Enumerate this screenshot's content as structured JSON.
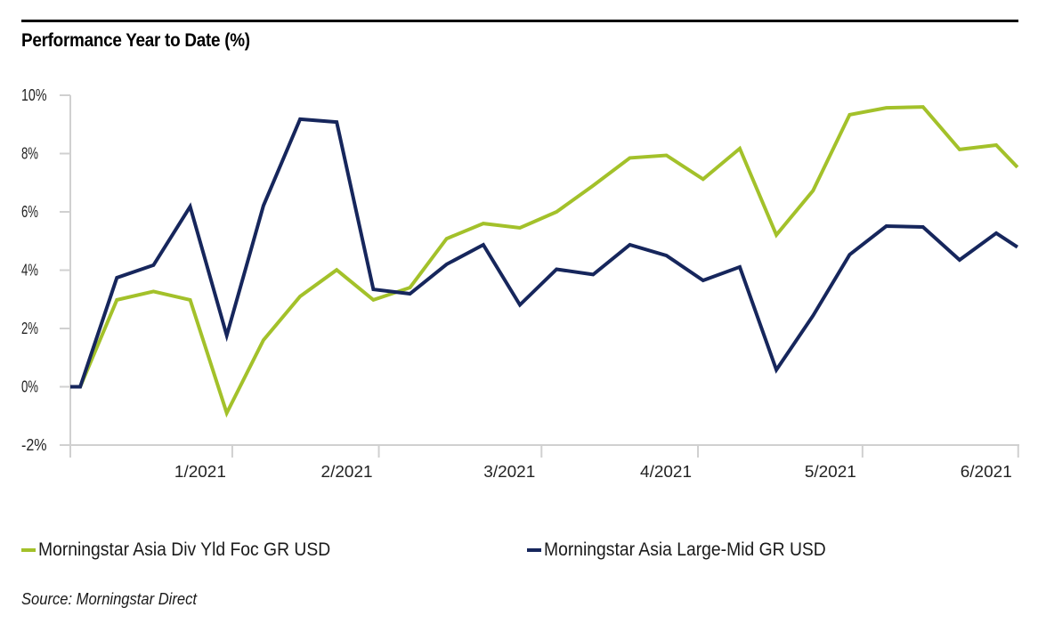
{
  "chart_data": {
    "type": "line",
    "title": "Performance Year to Date (%)",
    "xlabel": "",
    "ylabel": "",
    "ylim": [
      -2,
      10
    ],
    "yticks": [
      -2,
      0,
      2,
      4,
      6,
      8,
      10
    ],
    "ytick_labels": [
      "-2%",
      "0%",
      "2%",
      "4%",
      "6%",
      "8%",
      "10%"
    ],
    "x_unit": "weeks since start",
    "xlim": [
      0,
      25.9
    ],
    "xticks": [
      0,
      4.42,
      8.42,
      12.86,
      17.13,
      21.62,
      25.87
    ],
    "xtick_labels": [
      "",
      "1/2021",
      "2/2021",
      "3/2021",
      "4/2021",
      "5/2021",
      "6/2021"
    ],
    "grid": false,
    "legend_position": "bottom",
    "x": [
      0,
      0.27,
      1.27,
      2.27,
      3.27,
      4.27,
      5.27,
      6.27,
      7.27,
      8.27,
      9.27,
      10.27,
      11.27,
      12.27,
      13.27,
      14.27,
      15.27,
      16.27,
      17.27,
      18.27,
      19.27,
      20.27,
      21.27,
      22.27,
      23.27,
      24.27,
      25.27,
      25.85
    ],
    "series": [
      {
        "name": "Morningstar Asia Div Yld Foc GR USD",
        "color": "#a3c12a",
        "values": [
          0,
          0,
          2.98,
          3.27,
          2.98,
          -0.9,
          1.6,
          3.1,
          4.01,
          2.98,
          3.4,
          5.08,
          5.6,
          5.45,
          6.0,
          6.9,
          7.85,
          7.94,
          7.12,
          8.17,
          5.21,
          6.73,
          9.33,
          9.57,
          9.6,
          8.14,
          8.29,
          7.53
        ]
      },
      {
        "name": "Morningstar Asia Large-Mid GR USD",
        "color": "#16265c",
        "values": [
          0,
          0,
          3.74,
          4.17,
          6.18,
          1.76,
          6.21,
          9.18,
          9.08,
          3.34,
          3.19,
          4.2,
          4.87,
          2.81,
          4.03,
          3.85,
          4.87,
          4.5,
          3.65,
          4.11,
          0.58,
          2.44,
          4.53,
          5.51,
          5.48,
          4.35,
          5.27,
          4.79
        ]
      }
    ],
    "source": "Source: Morningstar Direct"
  },
  "colors": {
    "axis": "#d0d0d0",
    "rule": "#000000"
  }
}
